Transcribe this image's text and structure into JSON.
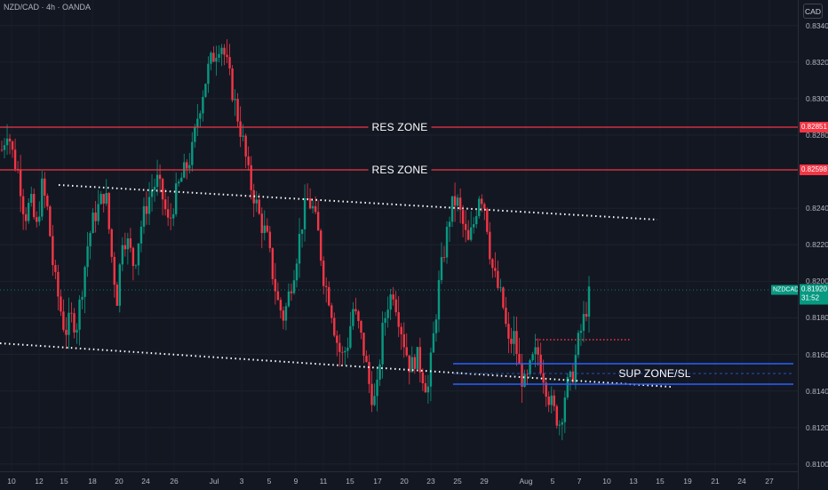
{
  "header": {
    "symbol_title": "NZD/CAD · 4h · OANDA"
  },
  "currency_button": "CAD",
  "price_axis": {
    "ticks": [
      {
        "label": "0.83400",
        "value": 0.834
      },
      {
        "label": "0.83200",
        "value": 0.832
      },
      {
        "label": "0.83000",
        "value": 0.83
      },
      {
        "label": "0.82800",
        "value": 0.828
      },
      {
        "label": "0.82400",
        "value": 0.824
      },
      {
        "label": "0.82200",
        "value": 0.822
      },
      {
        "label": "0.82000",
        "value": 0.82
      },
      {
        "label": "0.81800",
        "value": 0.818
      },
      {
        "label": "0.81600",
        "value": 0.816
      },
      {
        "label": "0.81400",
        "value": 0.814
      },
      {
        "label": "0.81200",
        "value": 0.812
      },
      {
        "label": "0.81000",
        "value": 0.81
      }
    ],
    "res_badge_1": "0.82851",
    "res_badge_2": "0.82598",
    "current_price": "0.81920",
    "countdown": "31:52",
    "symbol_badge": "NZDCAD"
  },
  "time_axis": {
    "ticks": [
      "10",
      "12",
      "15",
      "18",
      "20",
      "24",
      "26",
      "Jul",
      "3",
      "5",
      "9",
      "11",
      "15",
      "17",
      "20",
      "23",
      "25",
      "29",
      "Aug",
      "5",
      "7",
      "10",
      "13",
      "15",
      "19",
      "21",
      "24",
      "27"
    ]
  },
  "annotations": {
    "res_zone_1": "RES ZONE",
    "res_zone_2": "RES ZONE",
    "sup_zone": "SUP ZONE/SL"
  },
  "colors": {
    "background": "#131722",
    "up": "#089981",
    "down": "#f23645",
    "resistance": "#f23645",
    "support": "#2962ff",
    "trendline": "#ffffff",
    "text": "#b2b5be"
  },
  "chart_data": {
    "type": "candlestick",
    "ylim": [
      0.8096,
      0.8354
    ],
    "levels": {
      "resistance": [
        0.82851,
        0.82598
      ],
      "support_zone": [
        0.8138,
        0.815
      ],
      "current": 0.8192
    },
    "path": [
      [
        0.8272,
        0.8284,
        0.8268,
        0.8258,
        0.8235,
        0.8244,
        0.8228,
        0.8252,
        0.8238,
        0.8205,
        0.8188,
        0.8172,
        0.818,
        0.8176,
        0.8198,
        0.8222,
        0.8235,
        0.8242,
        0.825,
        0.8216,
        0.819,
        0.8226,
        0.822,
        0.8208,
        0.8228,
        0.824,
        0.825,
        0.8255,
        0.8245,
        0.823,
        0.8245,
        0.8255,
        0.8262,
        0.827,
        0.829,
        0.8305,
        0.8318,
        0.8325,
        0.8332
      ],
      [
        0.832,
        0.8305,
        0.829,
        0.8275,
        0.8255,
        0.8245,
        0.8232,
        0.8225,
        0.8205,
        0.8188,
        0.818,
        0.8195,
        0.821,
        0.823,
        0.8245,
        0.824,
        0.8225,
        0.82,
        0.819,
        0.817,
        0.8158,
        0.8165,
        0.8185,
        0.8175,
        0.816,
        0.814,
        0.8133,
        0.817,
        0.8188,
        0.8195,
        0.818,
        0.8165,
        0.8152,
        0.816,
        0.815,
        0.814,
        0.817,
        0.82,
        0.822,
        0.824
      ],
      [
        0.8245,
        0.8232,
        0.822,
        0.8232,
        0.825,
        0.824,
        0.821,
        0.8198,
        0.8188,
        0.8165,
        0.817,
        0.815,
        0.8142,
        0.8155,
        0.8162,
        0.815,
        0.8137,
        0.8128,
        0.8122,
        0.8142,
        0.8146,
        0.8165,
        0.8178,
        0.8192
      ]
    ]
  }
}
